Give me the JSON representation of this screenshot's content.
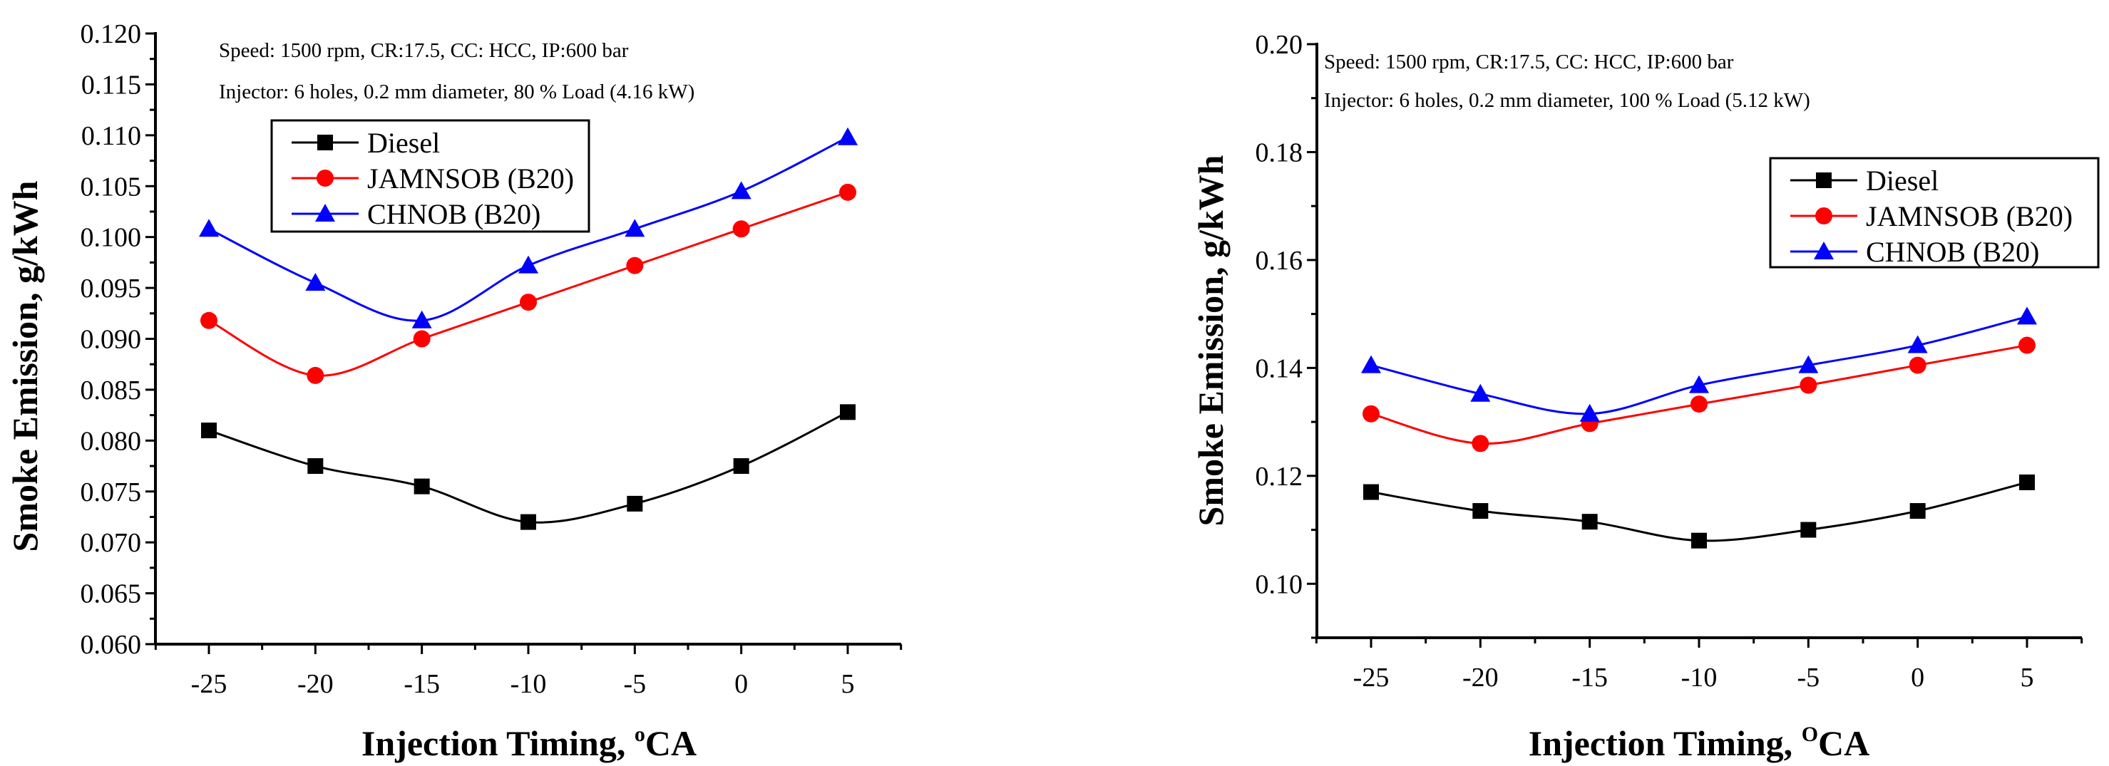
{
  "colors": {
    "Diesel": "#000000",
    "JAMNSOB (B20)": "#ff0000",
    "CHNOB (B20)": "#0000ff"
  },
  "chart_data": [
    {
      "type": "line",
      "title": "",
      "annotations": [
        "Speed: 1500 rpm, CR:17.5, CC: HCC, IP:600 bar",
        "Injector: 6 holes, 0.2 mm diameter, 80 % Load (4.16 kW)"
      ],
      "xlabel": "Injection Timing, ",
      "xlabel_sup": "o",
      "xlabel_suffix": "CA",
      "ylabel": "Smoke Emission, g/kWh",
      "x": [
        -25,
        -20,
        -15,
        -10,
        -5,
        0,
        5
      ],
      "xlim": [
        -27.5,
        7.5
      ],
      "ylim": [
        0.06,
        0.12
      ],
      "yticks": [
        "0.060",
        "0.065",
        "0.070",
        "0.075",
        "0.080",
        "0.085",
        "0.090",
        "0.095",
        "0.100",
        "0.105",
        "0.110",
        "0.115",
        "0.120"
      ],
      "xticks": [
        "-25",
        "-20",
        "-15",
        "-10",
        "-5",
        "0",
        "5"
      ],
      "legend_placement": "top-center",
      "series": [
        {
          "name": "Diesel",
          "marker": "square",
          "values": [
            0.081,
            0.0775,
            0.0755,
            0.072,
            0.0738,
            0.0775,
            0.0828
          ]
        },
        {
          "name": "JAMNSOB (B20)",
          "marker": "circle",
          "values": [
            0.0918,
            0.0864,
            0.09,
            0.0936,
            0.0972,
            0.1008,
            0.1044
          ]
        },
        {
          "name": "CHNOB (B20)",
          "marker": "triangle",
          "values": [
            0.1008,
            0.0955,
            0.0918,
            0.0972,
            0.1008,
            0.1045,
            0.1098
          ]
        }
      ]
    },
    {
      "type": "line",
      "title": "",
      "annotations": [
        "Speed: 1500 rpm, CR:17.5, CC: HCC, IP:600 bar",
        "Injector: 6 holes, 0.2 mm diameter, 100 % Load (5.12 kW)"
      ],
      "xlabel": "Injection Timing, ",
      "xlabel_sup": "O",
      "xlabel_suffix": "CA",
      "ylabel": "Smoke Emission, g/kWh",
      "x": [
        -25,
        -20,
        -15,
        -10,
        -5,
        0,
        5
      ],
      "xlim": [
        -27.5,
        7.5
      ],
      "ylim": [
        0.09,
        0.2
      ],
      "yticks": [
        "0.10",
        "0.12",
        "0.14",
        "0.16",
        "0.18",
        "0.20"
      ],
      "xticks": [
        "-25",
        "-20",
        "-15",
        "-10",
        "-5",
        "0",
        "5"
      ],
      "legend_placement": "top-right",
      "series": [
        {
          "name": "Diesel",
          "marker": "square",
          "values": [
            0.117,
            0.1135,
            0.1115,
            0.108,
            0.11,
            0.1135,
            0.1188
          ]
        },
        {
          "name": "JAMNSOB (B20)",
          "marker": "circle",
          "values": [
            0.1315,
            0.126,
            0.1297,
            0.1333,
            0.1368,
            0.1405,
            0.1442
          ]
        },
        {
          "name": "CHNOB (B20)",
          "marker": "triangle",
          "values": [
            0.1405,
            0.1352,
            0.1315,
            0.1368,
            0.1405,
            0.1442,
            0.1495
          ]
        }
      ]
    }
  ]
}
